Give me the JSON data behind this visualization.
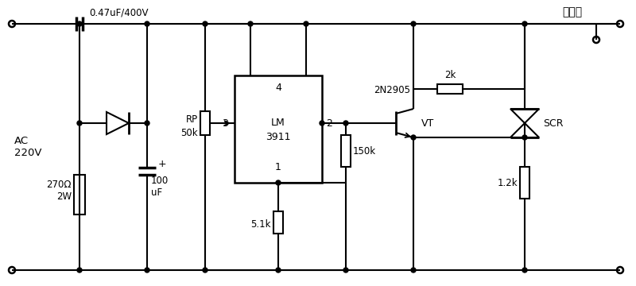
{
  "bg_color": "#ffffff",
  "lw": 1.5,
  "labels": {
    "cap_top": "0.47uF/400V",
    "ac": "AC\n220V",
    "r1": "270Ω\n2W",
    "c1": "100\nuF",
    "rp": "RP",
    "rp_val": "50k",
    "lm_pin4": "4",
    "lm_name1": "LM",
    "lm_name2": "3911",
    "lm_pin3": "3",
    "lm_pin2": "2",
    "lm_pin1": "1",
    "r_150k": "150k",
    "r_5_1k": "5.1k",
    "transistor": "2N2905",
    "vt": "VT",
    "r_2k": "2k",
    "r_1_2k": "1.2k",
    "scr": "SCR",
    "load": "接负载"
  }
}
